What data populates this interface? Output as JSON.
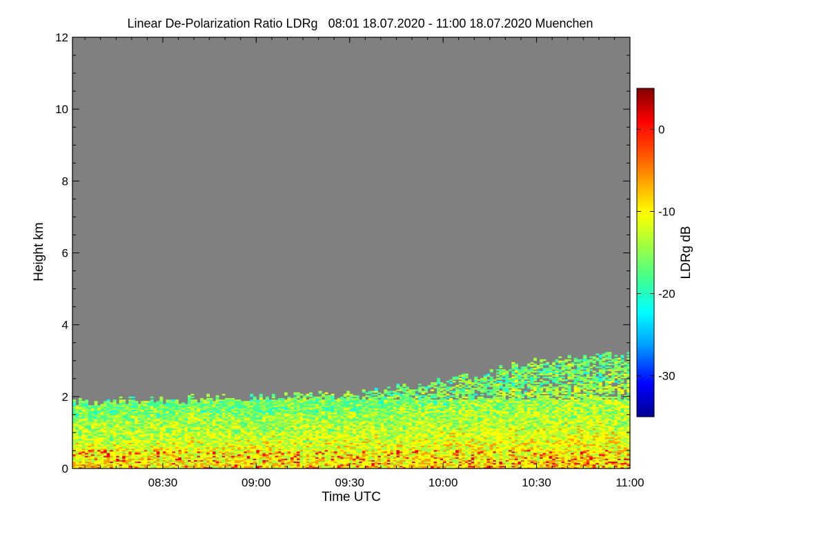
{
  "chart_data": {
    "type": "heatmap",
    "title": "Linear De-Polarization Ratio LDRg   08:01 18.07.2020 - 11:00 18.07.2020 Muenchen",
    "xlabel": "Time UTC",
    "ylabel": "Height km",
    "colorbar_label": "LDRg dB",
    "x_range": [
      "08:01",
      "11:00"
    ],
    "x_ticks": [
      "08:30",
      "09:00",
      "09:30",
      "10:00",
      "10:30",
      "11:00"
    ],
    "x_tick_minutes": [
      29,
      59,
      89,
      119,
      149,
      179
    ],
    "x_range_minutes": [
      0,
      179
    ],
    "ylim": [
      0,
      12
    ],
    "y_ticks": [
      "0",
      "2",
      "4",
      "6",
      "8",
      "10",
      "12"
    ],
    "y_tick_values": [
      0,
      2,
      4,
      6,
      8,
      10,
      12
    ],
    "colorbar_range": [
      -35,
      5
    ],
    "colorbar_ticks": [
      "0",
      "-10",
      "-20",
      "-30"
    ],
    "colorbar_tick_values": [
      0,
      -10,
      -20,
      -30
    ],
    "background_color": "#808080",
    "colormap": [
      "#00008f",
      "#0000ff",
      "#00a0ff",
      "#00ffff",
      "#40ff90",
      "#a0ff40",
      "#ffff00",
      "#ffa000",
      "#ff4000",
      "#ff0000",
      "#800000"
    ],
    "aerosol_layer_top_km": [
      {
        "minute": 0,
        "top": 1.85
      },
      {
        "minute": 30,
        "top": 1.9
      },
      {
        "minute": 60,
        "top": 2.0
      },
      {
        "minute": 90,
        "top": 2.1
      },
      {
        "minute": 110,
        "top": 2.3
      },
      {
        "minute": 130,
        "top": 2.6
      },
      {
        "minute": 150,
        "top": 3.0
      },
      {
        "minute": 179,
        "top": 3.2
      }
    ],
    "typical_ldr_db": {
      "near_surface": -10,
      "mid_layer": -15,
      "layer_top": -17
    }
  }
}
